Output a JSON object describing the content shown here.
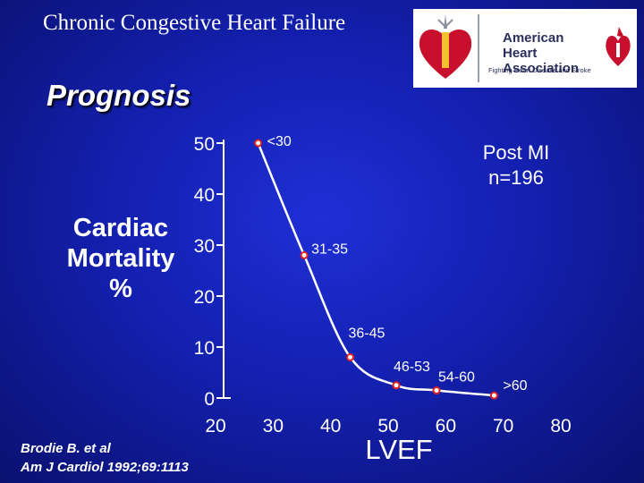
{
  "slide": {
    "title": "Chronic Congestive Heart Failure",
    "subtitle": "Prognosis"
  },
  "logo": {
    "org_name": "American Heart Association",
    "tagline": "Fighting Heart Disease and Stroke",
    "icons": [
      "heart-emblem-icon",
      "heart-torch-icon"
    ],
    "brand_color": "#c8102e"
  },
  "citation": {
    "line1": "Brodie B. et al",
    "line2": "Am J Cardiol 1992;69:1113"
  },
  "chart_data": {
    "type": "line",
    "ylabel": "Cardiac Mortality %",
    "xlabel": "LVEF",
    "annotation": "Post MI n=196",
    "xlim": [
      20,
      80
    ],
    "ylim": [
      0,
      50
    ],
    "x_ticks": [
      "20",
      "30",
      "40",
      "50",
      "60",
      "70",
      "80"
    ],
    "y_ticks": [
      "0",
      "10",
      "20",
      "30",
      "40",
      "50"
    ],
    "series": [
      {
        "color": "#ffffff",
        "marker_color": "#e02020",
        "points": [
          {
            "x": 26,
            "y": 50,
            "label": "<30"
          },
          {
            "x": 34,
            "y": 28,
            "label": "31-35"
          },
          {
            "x": 42,
            "y": 8,
            "label": "36-45"
          },
          {
            "x": 50,
            "y": 2.5,
            "label": "46-53"
          },
          {
            "x": 57,
            "y": 1.5,
            "label": "54-60"
          },
          {
            "x": 67,
            "y": 0.5,
            "label": ">60"
          }
        ]
      }
    ],
    "grid": false
  }
}
